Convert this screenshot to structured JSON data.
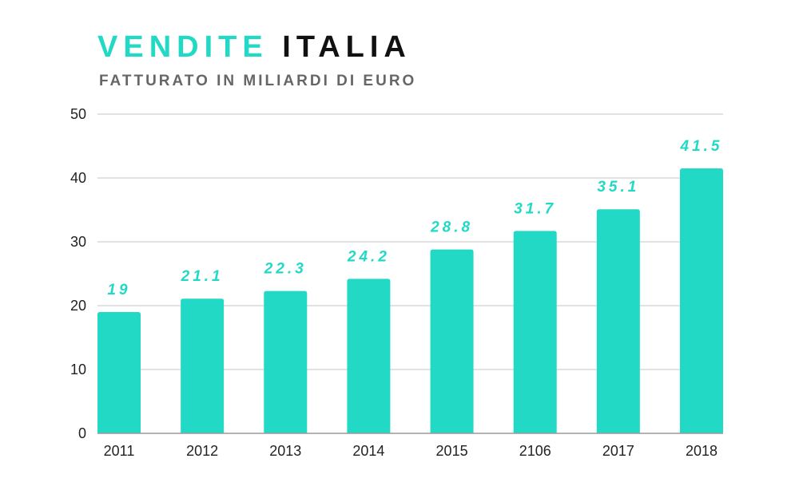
{
  "title": {
    "accent": "VENDITE",
    "main": "ITALIA"
  },
  "subtitle": "FATTURATO IN MILIARDI DI EURO",
  "colors": {
    "bar": "#22d9c6",
    "label": "#22d9c6",
    "grid": "#d9d9d9",
    "axis": "#222222"
  },
  "chart_data": {
    "type": "bar",
    "title": "VENDITE ITALIA",
    "subtitle": "FATTURATO IN MILIARDI DI EURO",
    "categories": [
      "2011",
      "2012",
      "2013",
      "2014",
      "2015",
      "2106",
      "2017",
      "2018"
    ],
    "values": [
      19,
      21.1,
      22.3,
      24.2,
      28.8,
      31.7,
      35.1,
      41.5
    ],
    "data_labels": [
      "19",
      "21.1",
      "22.3",
      "24.2",
      "28.8",
      "31.7",
      "35.1",
      "41.5"
    ],
    "xlabel": "",
    "ylabel": "",
    "ylim": [
      0,
      50
    ],
    "yticks": [
      0,
      10,
      20,
      30,
      40,
      50
    ],
    "ytick_labels": [
      "0",
      "10",
      "20",
      "30",
      "40",
      "50"
    ],
    "grid": true,
    "legend": "none"
  }
}
